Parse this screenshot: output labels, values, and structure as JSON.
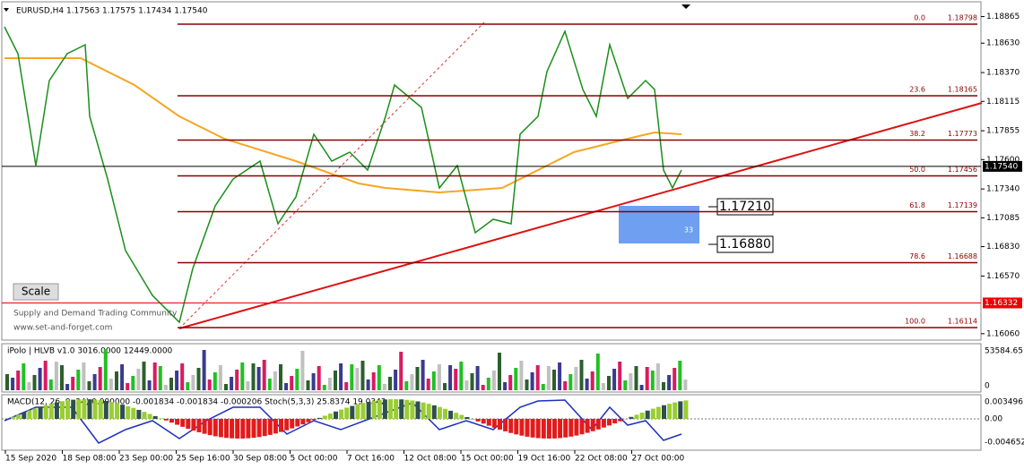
{
  "header": {
    "symbol_line": "EURUSD,H4  1.17563 1.17575 1.17434 1.17540"
  },
  "price_axis": {
    "labels": [
      "1.18865",
      "1.18630",
      "1.18370",
      "1.18115",
      "1.17855",
      "1.17600",
      "1.17340",
      "1.17085",
      "1.16830",
      "1.16570",
      "1.16060"
    ],
    "current_price": "1.17540",
    "support_price": "1.16332"
  },
  "fib_levels": [
    {
      "ratio": "0.0",
      "price": "1.18798"
    },
    {
      "ratio": "23.6",
      "price": "1.18165"
    },
    {
      "ratio": "38.2",
      "price": "1.17773"
    },
    {
      "ratio": "50.0",
      "price": "1.17456"
    },
    {
      "ratio": "61.8",
      "price": "1.17139"
    },
    {
      "ratio": "78.6",
      "price": "1.16688"
    },
    {
      "ratio": "100.0",
      "price": "1.16114"
    }
  ],
  "zone": {
    "top": "1.17210",
    "bottom": "1.16880",
    "count": "33"
  },
  "scale_button": "Scale",
  "watermark": {
    "line1": "Supply and Demand Trading Community",
    "line2": "www.set-and-forget.com"
  },
  "volume_panel": {
    "title": "iPolo | HLVB v1.0 3016.0000 12449.0000",
    "axis_max": "53584.65",
    "axis_min": "0"
  },
  "macd_panel": {
    "title": "MACD(12, 26, 9, 34) 0.000000 -0.001834 -0.001834 -0.000206  Stoch(5,3,3) 25.8374 19.0342",
    "axis_top": "0.003496",
    "axis_zero": "0.00",
    "axis_bottom": "-0.004652"
  },
  "time_axis": [
    "15 Sep 2020",
    "18 Sep 08:00",
    "23 Sep 00:00",
    "25 Sep 16:00",
    "30 Sep 08:00",
    "5 Oct 00:00",
    "7 Oct 16:00",
    "12 Oct 08:00",
    "15 Oct 00:00",
    "19 Oct 16:00",
    "22 Oct 08:00",
    "27 Oct 00:00"
  ]
}
